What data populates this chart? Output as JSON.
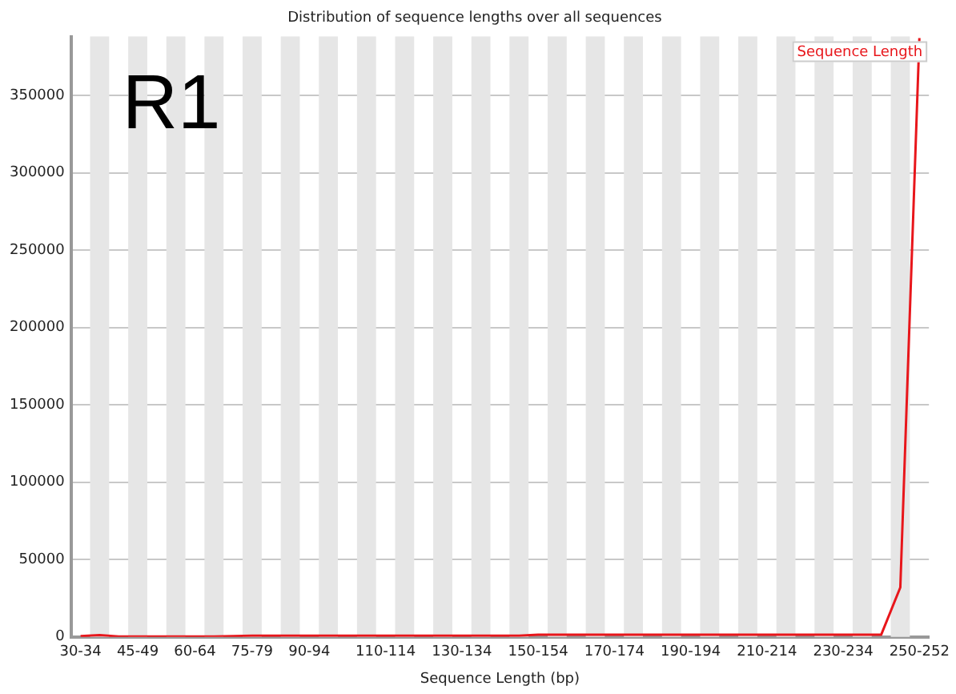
{
  "chart_data": {
    "type": "line",
    "title": "Distribution of sequence lengths over all sequences",
    "xlabel": "Sequence Length (bp)",
    "annotations": [
      "R1"
    ],
    "categories": [
      "30-34",
      null,
      null,
      "45-49",
      null,
      null,
      "60-64",
      null,
      null,
      "75-79",
      null,
      null,
      "90-94",
      null,
      null,
      null,
      "110-114",
      null,
      null,
      null,
      "130-134",
      null,
      null,
      null,
      "150-154",
      null,
      null,
      null,
      "170-174",
      null,
      null,
      null,
      "190-194",
      null,
      null,
      null,
      "210-214",
      null,
      null,
      null,
      "230-234",
      null,
      null,
      null,
      "250-252"
    ],
    "series": [
      {
        "name": "Sequence Length",
        "color": "#e8161b",
        "values": [
          500,
          1200,
          300,
          300,
          300,
          300,
          300,
          300,
          500,
          800,
          800,
          800,
          800,
          800,
          800,
          800,
          800,
          800,
          800,
          800,
          800,
          800,
          800,
          800,
          1500,
          1500,
          1500,
          1500,
          1500,
          1500,
          1500,
          1500,
          1500,
          1500,
          1500,
          1500,
          1500,
          1500,
          1500,
          1500,
          1500,
          1500,
          1500,
          32000,
          387000
        ]
      }
    ],
    "ylim": [
      0,
      388000
    ],
    "yticks": [
      0,
      50000,
      100000,
      150000,
      200000,
      250000,
      300000,
      350000
    ],
    "grid": "y",
    "legend": "top right",
    "marker": "none",
    "line_style": "solid"
  }
}
